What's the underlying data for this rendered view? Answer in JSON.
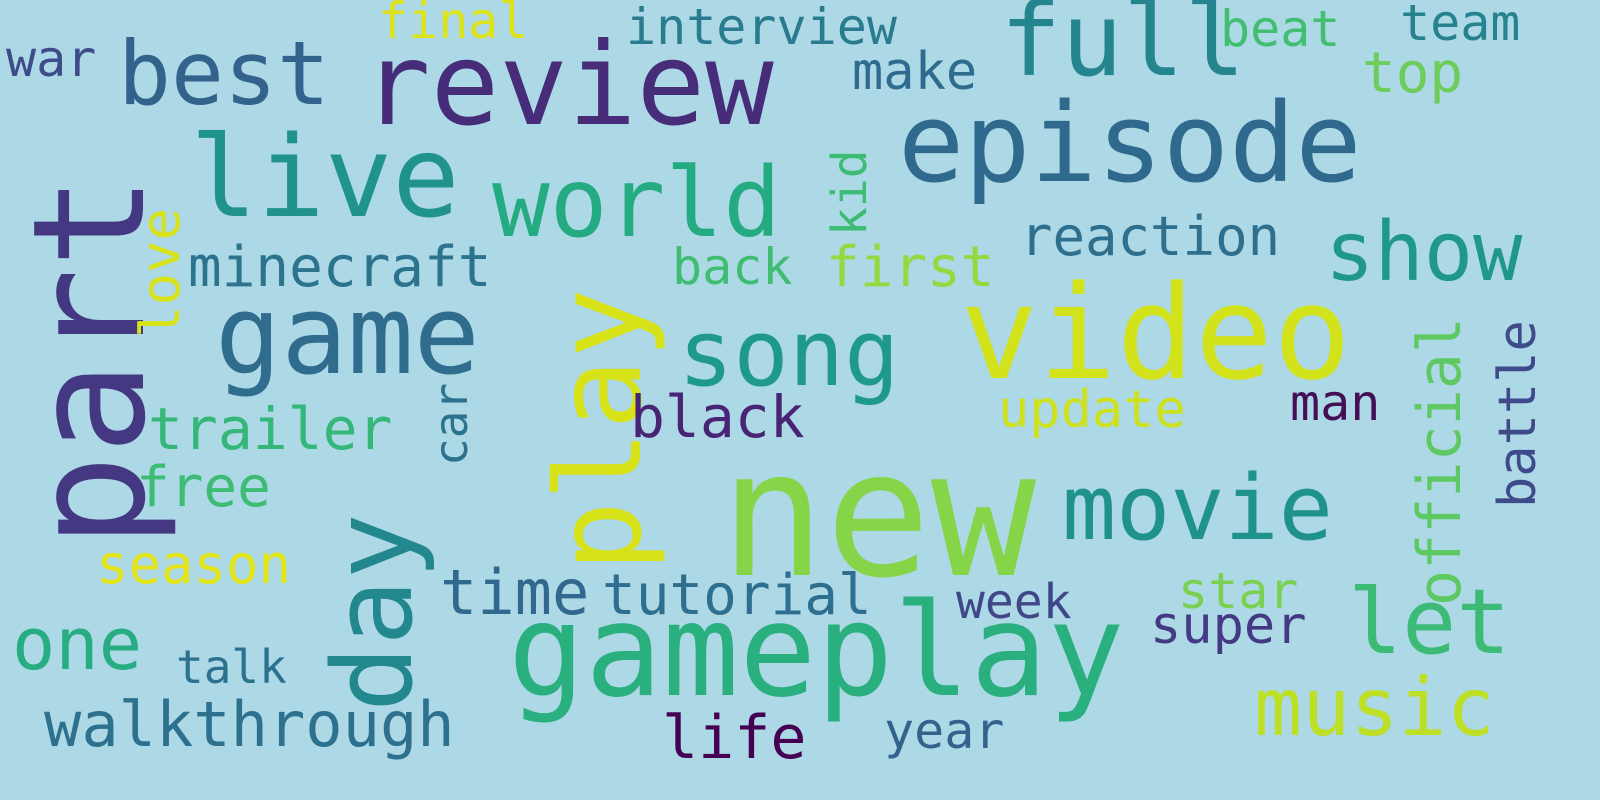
{
  "words": {
    "new": {
      "text": "new",
      "color": "#86d549"
    },
    "part": {
      "text": "part",
      "color": "#453882"
    },
    "video": {
      "text": "video",
      "color": "#d2e21b"
    },
    "gameplay": {
      "text": "gameplay",
      "color": "#2ab07f"
    },
    "review": {
      "text": "review",
      "color": "#472c7a"
    },
    "episode": {
      "text": "episode",
      "color": "#30698e"
    },
    "play": {
      "text": "play",
      "color": "#d8e219"
    },
    "live": {
      "text": "live",
      "color": "#20938c"
    },
    "game": {
      "text": "game",
      "color": "#2f6c8e"
    },
    "world": {
      "text": "world",
      "color": "#25ab82"
    },
    "full": {
      "text": "full",
      "color": "#25858e"
    },
    "day": {
      "text": "day",
      "color": "#23888e"
    },
    "movie": {
      "text": "movie",
      "color": "#20928c"
    },
    "song": {
      "text": "song",
      "color": "#1f9a8a"
    },
    "best": {
      "text": "best",
      "color": "#33638d"
    },
    "let": {
      "text": "let",
      "color": "#3bbb75"
    },
    "music": {
      "text": "music",
      "color": "#bddf26"
    },
    "show": {
      "text": "show",
      "color": "#1f988b"
    },
    "one": {
      "text": "one",
      "color": "#27ad81"
    },
    "official": {
      "text": "official",
      "color": "#5ec962"
    },
    "walkthrough": {
      "text": "walkthrough",
      "color": "#2d718e"
    },
    "minecraft": {
      "text": "minecraft",
      "color": "#2c738e"
    },
    "trailer": {
      "text": "trailer",
      "color": "#35b779"
    },
    "reaction": {
      "text": "reaction",
      "color": "#2e6f8e"
    },
    "tutorial": {
      "text": "tutorial",
      "color": "#2e6e8e"
    },
    "time": {
      "text": "time",
      "color": "#31688e"
    },
    "black": {
      "text": "black",
      "color": "#482475"
    },
    "first": {
      "text": "first",
      "color": "#95d840"
    },
    "update": {
      "text": "update",
      "color": "#cde11d"
    },
    "battle": {
      "text": "battle",
      "color": "#3e4a89"
    },
    "season": {
      "text": "season",
      "color": "#e2e418"
    },
    "free": {
      "text": "free",
      "color": "#3dbc74"
    },
    "star": {
      "text": "star",
      "color": "#7ad151"
    },
    "super": {
      "text": "super",
      "color": "#443a83"
    },
    "interview": {
      "text": "interview",
      "color": "#297b8e"
    },
    "top": {
      "text": "top",
      "color": "#6ccd5a"
    },
    "make": {
      "text": "make",
      "color": "#2f6b8e"
    },
    "man": {
      "text": "man",
      "color": "#440f57"
    },
    "week": {
      "text": "week",
      "color": "#3f4788"
    },
    "year": {
      "text": "year",
      "color": "#33628d"
    },
    "life": {
      "text": "life",
      "color": "#440154"
    },
    "final": {
      "text": "final",
      "color": "#dde318"
    },
    "beat": {
      "text": "beat",
      "color": "#42be71"
    },
    "team": {
      "text": "team",
      "color": "#26828e"
    },
    "war": {
      "text": "war",
      "color": "#3e4c8a"
    },
    "love": {
      "text": "love",
      "color": "#d8e219"
    },
    "back": {
      "text": "back",
      "color": "#40bd72"
    },
    "kid": {
      "text": "kid",
      "color": "#3dbc74"
    },
    "car": {
      "text": "car",
      "color": "#2c728e"
    },
    "talk": {
      "text": "talk",
      "color": "#2c728e"
    }
  }
}
